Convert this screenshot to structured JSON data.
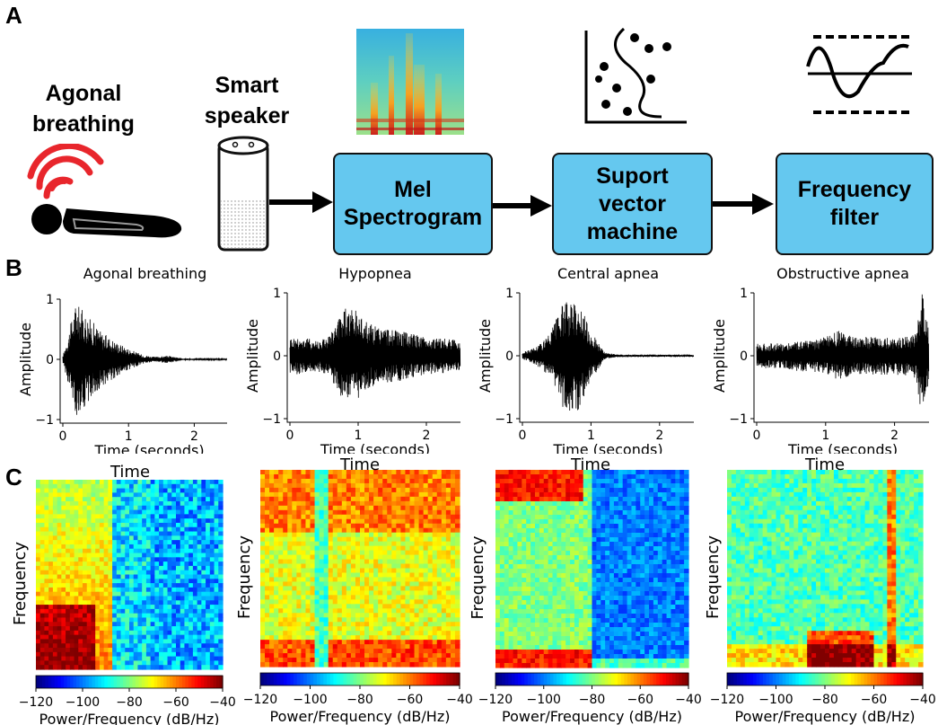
{
  "panels": {
    "a": "A",
    "b": "B",
    "c": "C"
  },
  "pipeline": {
    "agonal_label": "Agonal\nbreathing",
    "speaker_label": "Smart\nspeaker",
    "boxes": [
      "Mel\nSpectrogram",
      "Suport\nvector\nmachine",
      "Frequency\nfilter"
    ],
    "box_color": "#65c8ef",
    "icons": [
      "person-lying-icon",
      "sound-waves-icon",
      "smart-speaker-icon",
      "spectrogram-thumbnail",
      "svm-scatter-icon",
      "frequency-filter-icon"
    ]
  },
  "waveforms": {
    "ylabel": "Amplitude",
    "xlabel": "Time (seconds)",
    "yticks": [
      "1",
      "0",
      "−1"
    ],
    "xticks": [
      "0",
      "1",
      "2"
    ],
    "titles": [
      "Agonal breathing",
      "Hypopnea",
      "Central apnea",
      "Obstructive apnea"
    ]
  },
  "spectrograms": {
    "title": "Time",
    "ylabel": "Frequency",
    "colorbar_ticks": [
      "−120",
      "−100",
      "−80",
      "−60",
      "−40"
    ],
    "colorbar_label": "Power/Frequency (dB/Hz)",
    "colormap": "jet"
  },
  "chart_data": [
    {
      "type": "line",
      "title": "Agonal breathing",
      "xlabel": "Time (seconds)",
      "ylabel": "Amplitude",
      "xlim": [
        0,
        2.5
      ],
      "ylim": [
        -1,
        1
      ],
      "x": [
        0,
        0.2,
        0.4,
        0.6,
        0.8,
        1.0,
        1.2,
        1.4,
        1.6,
        1.8,
        2.0,
        2.5
      ],
      "envelope": [
        0.05,
        0.95,
        0.7,
        0.45,
        0.3,
        0.18,
        0.08,
        0.04,
        0.06,
        0.02,
        0.01,
        0.01
      ]
    },
    {
      "type": "line",
      "title": "Hypopnea",
      "xlabel": "Time (seconds)",
      "ylabel": "Amplitude",
      "xlim": [
        0,
        2.5
      ],
      "ylim": [
        -1,
        1
      ],
      "x": [
        0,
        0.2,
        0.4,
        0.6,
        0.8,
        1.0,
        1.2,
        1.4,
        1.6,
        1.8,
        2.0,
        2.5
      ],
      "envelope": [
        0.3,
        0.3,
        0.25,
        0.35,
        0.8,
        0.7,
        0.5,
        0.45,
        0.4,
        0.35,
        0.3,
        0.25
      ]
    },
    {
      "type": "line",
      "title": "Central apnea",
      "xlabel": "Time (seconds)",
      "ylabel": "Amplitude",
      "xlim": [
        0,
        2.5
      ],
      "ylim": [
        -1,
        1
      ],
      "x": [
        0,
        0.2,
        0.4,
        0.6,
        0.8,
        1.0,
        1.2,
        1.4,
        1.6,
        1.8,
        2.0,
        2.5
      ],
      "envelope": [
        0.05,
        0.15,
        0.35,
        0.85,
        0.9,
        0.4,
        0.05,
        0.02,
        0.02,
        0.02,
        0.02,
        0.02
      ]
    },
    {
      "type": "line",
      "title": "Obstructive apnea",
      "xlabel": "Time (seconds)",
      "ylabel": "Amplitude",
      "xlim": [
        0,
        2.5
      ],
      "ylim": [
        -1,
        1
      ],
      "x": [
        0,
        0.2,
        0.4,
        0.6,
        0.8,
        1.0,
        1.2,
        1.4,
        1.6,
        1.8,
        2.0,
        2.3,
        2.4,
        2.5
      ],
      "envelope": [
        0.2,
        0.2,
        0.2,
        0.25,
        0.25,
        0.3,
        0.4,
        0.3,
        0.3,
        0.3,
        0.3,
        0.35,
        1.0,
        0.4
      ]
    },
    {
      "type": "heatmap",
      "title": "Time",
      "ylabel": "Frequency",
      "colorbar_range": [
        -120,
        -40
      ],
      "colorbar_label": "Power/Frequency (dB/Hz)"
    },
    {
      "type": "heatmap",
      "title": "Time",
      "ylabel": "Frequency",
      "colorbar_range": [
        -120,
        -40
      ],
      "colorbar_label": "Power/Frequency (dB/Hz)"
    },
    {
      "type": "heatmap",
      "title": "Time",
      "ylabel": "Frequency",
      "colorbar_range": [
        -120,
        -40
      ],
      "colorbar_label": "Power/Frequency (dB/Hz)"
    },
    {
      "type": "heatmap",
      "title": "Time",
      "ylabel": "Frequency",
      "colorbar_range": [
        -120,
        -40
      ],
      "colorbar_label": "Power/Frequency (dB/Hz)"
    }
  ]
}
